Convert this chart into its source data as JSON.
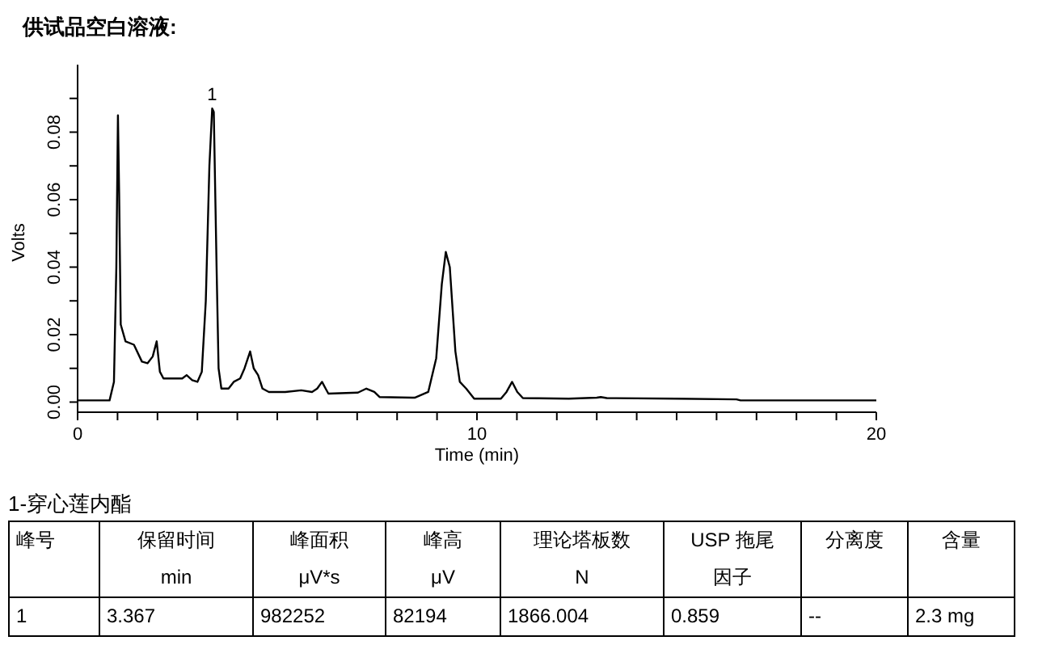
{
  "chart_data": [
    {
      "type": "line",
      "title": "供试品空白溶液:",
      "xlabel": "Time (min)",
      "ylabel": "Volts",
      "x": [
        0,
        0.8,
        0.91,
        0.97,
        1.01,
        1.04,
        1.08,
        1.2,
        1.41,
        1.61,
        1.75,
        1.88,
        1.98,
        2.06,
        2.15,
        2.62,
        2.73,
        2.87,
        3.0,
        3.11,
        3.21,
        3.3,
        3.37,
        3.41,
        3.48,
        3.53,
        3.6,
        3.78,
        3.91,
        4.07,
        4.18,
        4.32,
        4.41,
        4.52,
        4.63,
        4.79,
        5.2,
        5.6,
        5.87,
        6.0,
        6.12,
        6.21,
        6.28,
        7.02,
        7.23,
        7.43,
        7.56,
        8.44,
        8.78,
        8.98,
        9.12,
        9.22,
        9.32,
        9.46,
        9.57,
        9.73,
        9.93,
        10.6,
        10.74,
        10.88,
        11.01,
        11.15,
        12.3,
        13.0,
        13.1,
        13.25,
        15.0,
        16.5,
        16.6,
        20
      ],
      "series": [
        {
          "color": "#000000",
          "values": [
            0.0005,
            0.0005,
            0.006,
            0.04,
            0.085,
            0.062,
            0.023,
            0.018,
            0.017,
            0.012,
            0.0115,
            0.0135,
            0.018,
            0.009,
            0.007,
            0.007,
            0.008,
            0.0065,
            0.006,
            0.009,
            0.03,
            0.07,
            0.087,
            0.086,
            0.04,
            0.01,
            0.004,
            0.004,
            0.006,
            0.007,
            0.01,
            0.015,
            0.01,
            0.008,
            0.004,
            0.003,
            0.003,
            0.0035,
            0.003,
            0.004,
            0.006,
            0.004,
            0.0025,
            0.0028,
            0.004,
            0.003,
            0.0015,
            0.0013,
            0.003,
            0.013,
            0.035,
            0.0445,
            0.04,
            0.015,
            0.006,
            0.004,
            0.001,
            0.001,
            0.003,
            0.006,
            0.003,
            0.0012,
            0.001,
            0.0013,
            0.0015,
            0.0012,
            0.001,
            0.0008,
            0.0005,
            0.0005
          ]
        }
      ],
      "xlim": [
        0,
        20
      ],
      "xticks": [
        0,
        {
          "value": 1,
          "label": null
        },
        {
          "value": 2,
          "label": null
        },
        {
          "value": 3,
          "label": null
        },
        {
          "value": 4,
          "label": null
        },
        {
          "value": 5,
          "label": null
        },
        {
          "value": 6,
          "label": null
        },
        {
          "value": 7,
          "label": null
        },
        {
          "value": 8,
          "label": null
        },
        {
          "value": 9,
          "label": null
        },
        10,
        {
          "value": 11,
          "label": null
        },
        {
          "value": 12,
          "label": null
        },
        {
          "value": 13,
          "label": null
        },
        {
          "value": 14,
          "label": null
        },
        {
          "value": 15,
          "label": null
        },
        {
          "value": 16,
          "label": null
        },
        {
          "value": 17,
          "label": null
        },
        {
          "value": 18,
          "label": null
        },
        {
          "value": 19,
          "label": null
        },
        20
      ],
      "ylim": [
        -0.003,
        0.1
      ],
      "yticks": [
        {
          "value": 0,
          "label": "0.00"
        },
        {
          "value": 0.01,
          "label": null
        },
        {
          "value": 0.02,
          "label": "0.02"
        },
        {
          "value": 0.03,
          "label": null
        },
        {
          "value": 0.04,
          "label": "0.04"
        },
        {
          "value": 0.05,
          "label": null
        },
        {
          "value": 0.06,
          "label": "0.06"
        },
        {
          "value": 0.07,
          "label": null
        },
        {
          "value": 0.08,
          "label": "0.08"
        },
        {
          "value": 0.09,
          "label": null
        }
      ],
      "annotations": [
        {
          "text": "1",
          "x": 3.37,
          "y": 0.087
        }
      ],
      "grid": false,
      "legend": false,
      "marker": "none",
      "line_style": "solid"
    },
    {
      "type": "other",
      "title": "1-穿心莲内酯",
      "annotations": [
        "峰号",
        "保留时间",
        "峰面积",
        "峰高",
        "理论塔板数",
        "USP 拖尾",
        "分离度",
        "含量",
        null,
        "min",
        "μV*s",
        "μV",
        "N",
        "因子",
        null,
        null,
        "1",
        "3.367",
        "982252",
        "82194",
        "1866.004",
        "0.859",
        "--",
        "2.3 mg"
      ]
    }
  ]
}
